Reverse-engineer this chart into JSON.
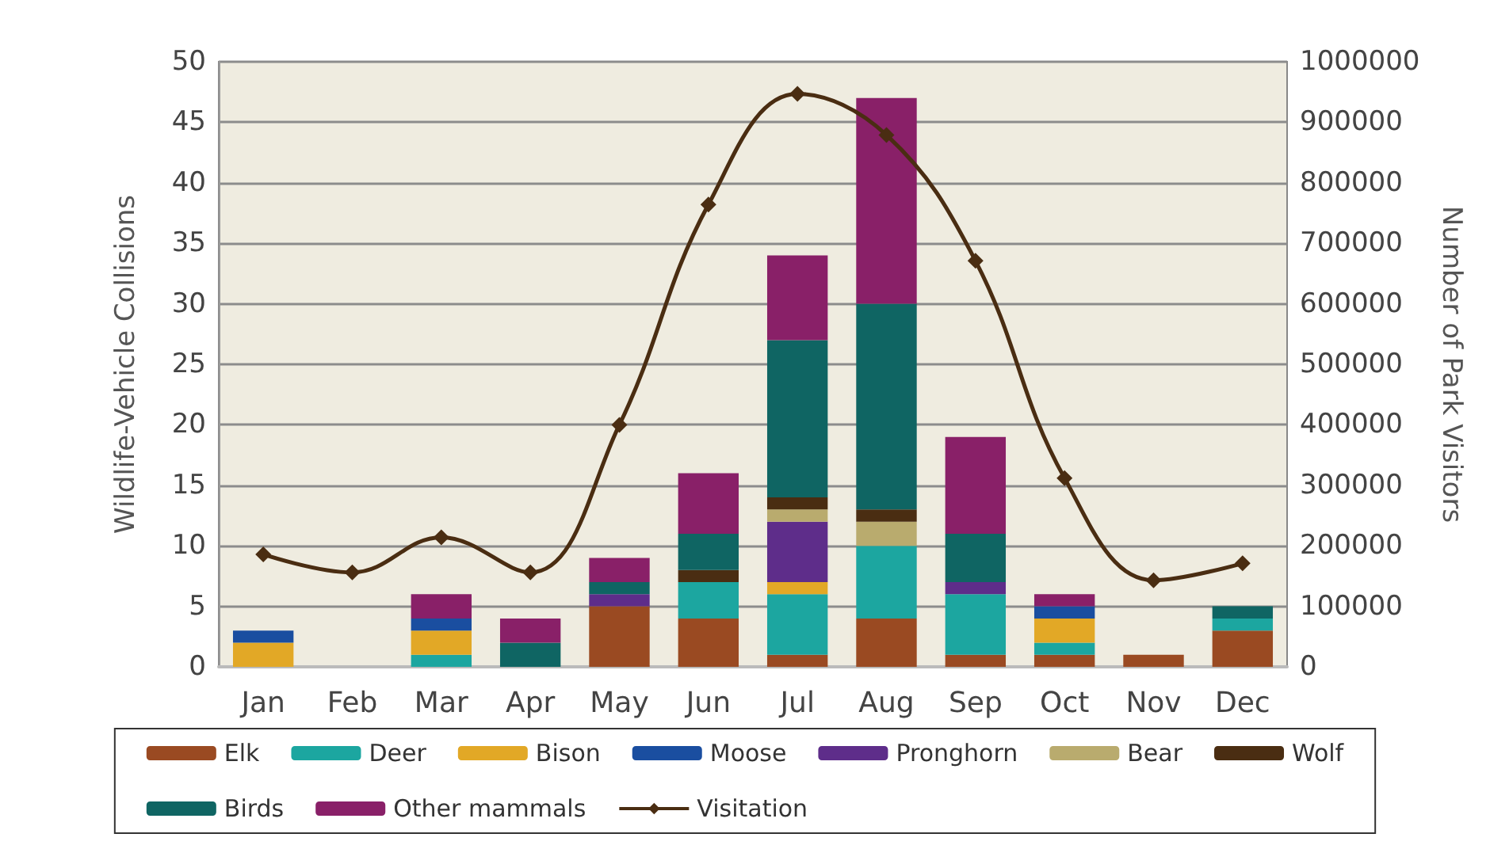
{
  "chart_data": {
    "type": "bar",
    "stacked": true,
    "ylabel": "Wildlife-Vehicle Collisions",
    "y2label": "Number of Park Visitors",
    "categories": [
      "Jan",
      "Feb",
      "Mar",
      "Apr",
      "May",
      "Jun",
      "Jul",
      "Aug",
      "Sep",
      "Oct",
      "Nov",
      "Dec"
    ],
    "series": [
      {
        "name": "Elk",
        "color": "#9a4a22",
        "values": [
          0,
          0,
          0,
          0,
          5,
          4,
          1,
          4,
          1,
          1,
          1,
          3
        ]
      },
      {
        "name": "Deer",
        "color": "#1ca6a0",
        "values": [
          0,
          0,
          1,
          0,
          0,
          3,
          5,
          6,
          5,
          1,
          0,
          1
        ]
      },
      {
        "name": "Bison",
        "color": "#e2a826",
        "values": [
          2,
          0,
          2,
          0,
          0,
          0,
          1,
          0,
          0,
          2,
          0,
          0
        ]
      },
      {
        "name": "Moose",
        "color": "#1a4ea0",
        "values": [
          1,
          0,
          1,
          0,
          0,
          0,
          0,
          0,
          0,
          1,
          0,
          0
        ]
      },
      {
        "name": "Pronghorn",
        "color": "#5e2d8a",
        "values": [
          0,
          0,
          0,
          0,
          1,
          0,
          5,
          0,
          1,
          0,
          0,
          0
        ]
      },
      {
        "name": "Bear",
        "color": "#b9ab6e",
        "values": [
          0,
          0,
          0,
          0,
          0,
          0,
          1,
          2,
          0,
          0,
          0,
          0
        ]
      },
      {
        "name": "Wolf",
        "color": "#4a2d12",
        "values": [
          0,
          0,
          0,
          0,
          0,
          1,
          1,
          1,
          0,
          0,
          0,
          0
        ]
      },
      {
        "name": "Birds",
        "color": "#0f6563",
        "values": [
          0,
          0,
          0,
          2,
          1,
          3,
          13,
          17,
          4,
          0,
          0,
          1
        ]
      },
      {
        "name": "Other mammals",
        "color": "#892068",
        "values": [
          0,
          0,
          2,
          2,
          2,
          5,
          7,
          17,
          8,
          1,
          0,
          0
        ]
      },
      {
        "name": "Visitation",
        "type": "line",
        "axis": "y2",
        "marker": "diamond",
        "color": "#4a2d12",
        "values": [
          186000,
          156000,
          214000,
          156000,
          400000,
          764000,
          947000,
          879000,
          671000,
          312000,
          143000,
          171000
        ]
      }
    ],
    "ylim": [
      0,
      50
    ],
    "yticks": [
      0,
      5,
      10,
      15,
      20,
      25,
      30,
      35,
      40,
      45,
      50
    ],
    "y2lim": [
      0,
      1000000
    ],
    "y2ticks": [
      0,
      100000,
      200000,
      300000,
      400000,
      500000,
      600000,
      700000,
      800000,
      900000,
      1000000
    ],
    "grid": "y",
    "legend": "bottom"
  }
}
